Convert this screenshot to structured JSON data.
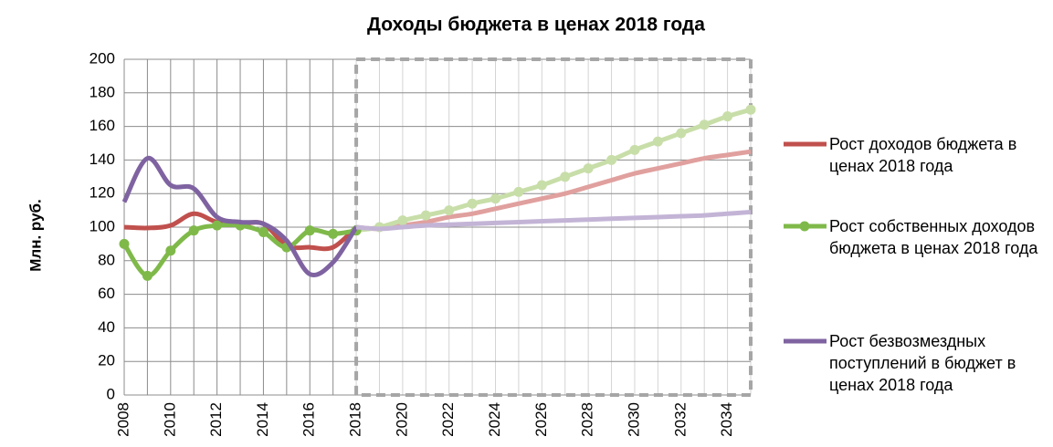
{
  "chart_data": {
    "type": "line",
    "title": "Доходы бюджета в ценах 2018 года",
    "y_label": "Млн. руб.",
    "x": [
      2008,
      2009,
      2010,
      2011,
      2012,
      2013,
      2014,
      2015,
      2016,
      2017,
      2018,
      2019,
      2020,
      2021,
      2022,
      2023,
      2024,
      2025,
      2026,
      2027,
      2028,
      2029,
      2030,
      2031,
      2032,
      2033,
      2034,
      2035
    ],
    "xlim": [
      2008,
      2035
    ],
    "xticks": [
      2008,
      2010,
      2012,
      2014,
      2016,
      2018,
      2020,
      2022,
      2024,
      2026,
      2028,
      2030,
      2032,
      2034
    ],
    "ylim": [
      0,
      200
    ],
    "yticks": [
      0,
      20,
      40,
      60,
      80,
      100,
      120,
      140,
      160,
      180,
      200
    ],
    "grid": true,
    "forecast_from": 2018,
    "series": [
      {
        "name": "Рост доходов бюджета в ценах 2018 года",
        "color": "#c0504d",
        "forecast_color": "#e0a09e",
        "markers": false,
        "values": [
          100,
          99.5,
          101,
          108,
          103,
          102,
          102,
          89,
          88,
          88,
          100,
          99,
          101,
          103,
          106,
          108,
          111,
          114,
          117,
          120,
          124,
          128,
          132,
          135,
          138,
          141,
          143,
          145
        ]
      },
      {
        "name": "Рост собственных доходов бюджета  в ценах 2018 года",
        "color": "#7fb94a",
        "forecast_color": "#c8dea9",
        "markers": true,
        "values": [
          90,
          71,
          86,
          98,
          101,
          101,
          97,
          88,
          98,
          96,
          98,
          100,
          104,
          107,
          110,
          114,
          117,
          121,
          125,
          130,
          135,
          140,
          146,
          151,
          156,
          161,
          166,
          170
        ]
      },
      {
        "name": "Рост безвозмездных поступлений в бюджет в ценах 2018 года",
        "color": "#7f63a1",
        "forecast_color": "#c3b4d6",
        "markers": false,
        "values": [
          115,
          141,
          125,
          123,
          106,
          103,
          102,
          92,
          72,
          79,
          100,
          99,
          100,
          101,
          101.5,
          102,
          102.5,
          103,
          103.5,
          104,
          104.5,
          105,
          105.5,
          106,
          106.5,
          107,
          108,
          109
        ]
      }
    ]
  }
}
